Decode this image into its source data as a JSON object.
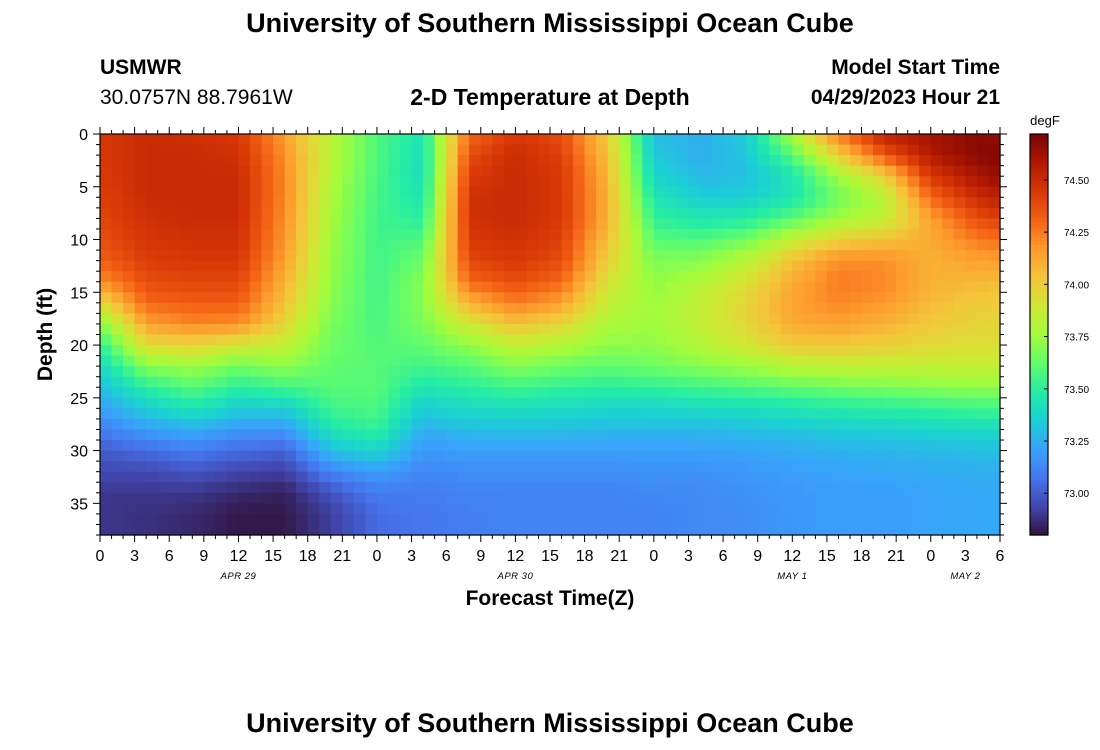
{
  "page": {
    "title_top": "University of Southern Mississippi Ocean Cube",
    "title_bottom": "University of Southern Mississippi Ocean Cube",
    "station": {
      "id": "USMWR",
      "coords": "30.0757N  88.7961W"
    },
    "model_start": {
      "label": "Model Start Time",
      "value": "04/29/2023 Hour 21"
    }
  },
  "chart_data": {
    "type": "heatmap",
    "title": "2-D Temperature at Depth",
    "xlabel": "Forecast Time(Z)",
    "ylabel": "Depth (ft)",
    "x_unit": "hours after 2023-04-29 00Z",
    "x_range_hours": [
      0,
      78
    ],
    "x_ticks": [
      {
        "h": 0,
        "label": "0"
      },
      {
        "h": 3,
        "label": "3"
      },
      {
        "h": 6,
        "label": "6"
      },
      {
        "h": 9,
        "label": "9"
      },
      {
        "h": 12,
        "label": "12"
      },
      {
        "h": 15,
        "label": "15"
      },
      {
        "h": 18,
        "label": "18"
      },
      {
        "h": 21,
        "label": "21"
      },
      {
        "h": 24,
        "label": "0"
      },
      {
        "h": 27,
        "label": "3"
      },
      {
        "h": 30,
        "label": "6"
      },
      {
        "h": 33,
        "label": "9"
      },
      {
        "h": 36,
        "label": "12"
      },
      {
        "h": 39,
        "label": "15"
      },
      {
        "h": 42,
        "label": "18"
      },
      {
        "h": 45,
        "label": "21"
      },
      {
        "h": 48,
        "label": "0"
      },
      {
        "h": 51,
        "label": "3"
      },
      {
        "h": 54,
        "label": "6"
      },
      {
        "h": 57,
        "label": "9"
      },
      {
        "h": 60,
        "label": "12"
      },
      {
        "h": 63,
        "label": "15"
      },
      {
        "h": 66,
        "label": "18"
      },
      {
        "h": 69,
        "label": "21"
      },
      {
        "h": 72,
        "label": "0"
      },
      {
        "h": 75,
        "label": "3"
      },
      {
        "h": 78,
        "label": "6"
      }
    ],
    "date_labels": [
      {
        "h": 12,
        "label": "APR 29"
      },
      {
        "h": 36,
        "label": "APR 30"
      },
      {
        "h": 60,
        "label": "MAY 1"
      },
      {
        "h": 75,
        "label": "MAY 2"
      }
    ],
    "y_range_ft": [
      0,
      38
    ],
    "y_ticks": [
      0,
      5,
      10,
      15,
      20,
      25,
      30,
      35
    ],
    "y_inverted": true,
    "colorbar": {
      "unit": "degF",
      "range": [
        72.8,
        74.72
      ],
      "ticks": [
        73.0,
        73.25,
        73.5,
        73.75,
        74.0,
        74.25,
        74.5
      ],
      "tick_labels": [
        "73.00",
        "73.25",
        "73.50",
        "73.75",
        "74.00",
        "74.25",
        "74.50"
      ],
      "colormap": [
        "#30123b",
        "#4145ab",
        "#4675ed",
        "#39a2fc",
        "#1bcfd4",
        "#24eca6",
        "#61fc6c",
        "#a4fc3b",
        "#d1e834",
        "#f3c63a",
        "#fe9b2d",
        "#f36315",
        "#d93806",
        "#b11901",
        "#7a0402"
      ]
    },
    "grid_step_hours": 1,
    "depth_levels_ft": [
      0,
      2,
      4,
      6,
      8,
      10,
      12,
      14,
      16,
      18,
      20,
      22,
      24,
      26,
      28,
      30,
      32,
      34,
      36,
      38
    ],
    "temperature_profiles_degF": {
      "hours": [
        0,
        4,
        8,
        12,
        16,
        20,
        24,
        28,
        32,
        36,
        40,
        44,
        48,
        52,
        56,
        60,
        64,
        68,
        72,
        76,
        78
      ],
      "values": [
        [
          74.45,
          74.45,
          74.44,
          74.42,
          74.4,
          74.37,
          74.32,
          74.2,
          73.95,
          73.7,
          73.5,
          73.4,
          73.3,
          73.2,
          73.1,
          73.0,
          72.95,
          72.9,
          72.9,
          72.9
        ],
        [
          74.5,
          74.5,
          74.5,
          74.5,
          74.48,
          74.46,
          74.43,
          74.38,
          74.3,
          74.15,
          73.95,
          73.7,
          73.5,
          73.35,
          73.2,
          73.05,
          72.95,
          72.9,
          72.88,
          72.88
        ],
        [
          74.48,
          74.5,
          74.5,
          74.5,
          74.5,
          74.48,
          74.45,
          74.4,
          74.33,
          74.22,
          73.98,
          73.75,
          73.6,
          73.45,
          73.25,
          73.1,
          72.98,
          72.9,
          72.86,
          72.86
        ],
        [
          74.45,
          74.48,
          74.5,
          74.5,
          74.5,
          74.48,
          74.45,
          74.4,
          74.33,
          74.2,
          73.9,
          73.65,
          73.5,
          73.35,
          73.18,
          73.05,
          72.94,
          72.86,
          72.82,
          72.82
        ],
        [
          74.15,
          74.2,
          74.22,
          74.22,
          74.2,
          74.18,
          74.15,
          74.1,
          74.05,
          73.97,
          73.85,
          73.72,
          73.55,
          73.35,
          73.18,
          73.02,
          72.92,
          72.84,
          72.82,
          72.82
        ],
        [
          73.82,
          73.82,
          73.8,
          73.78,
          73.77,
          73.75,
          73.74,
          73.72,
          73.7,
          73.67,
          73.65,
          73.62,
          73.6,
          73.55,
          73.45,
          73.3,
          73.12,
          72.98,
          72.92,
          72.92
        ],
        [
          73.58,
          73.58,
          73.57,
          73.56,
          73.55,
          73.55,
          73.55,
          73.55,
          73.56,
          73.57,
          73.59,
          73.6,
          73.6,
          73.58,
          73.52,
          73.38,
          73.2,
          73.1,
          73.05,
          73.05
        ],
        [
          73.45,
          73.42,
          73.42,
          73.45,
          73.5,
          73.58,
          73.65,
          73.7,
          73.7,
          73.68,
          73.62,
          73.55,
          73.45,
          73.35,
          73.25,
          73.18,
          73.13,
          73.1,
          73.08,
          73.08
        ],
        [
          74.3,
          74.38,
          74.44,
          74.48,
          74.48,
          74.45,
          74.4,
          74.3,
          74.1,
          73.9,
          73.72,
          73.6,
          73.5,
          73.4,
          73.3,
          73.2,
          73.15,
          73.12,
          73.1,
          73.1
        ],
        [
          74.45,
          74.5,
          74.5,
          74.5,
          74.5,
          74.48,
          74.45,
          74.38,
          74.25,
          74.05,
          73.85,
          73.7,
          73.55,
          73.42,
          73.3,
          73.2,
          73.15,
          73.12,
          73.12,
          73.12
        ],
        [
          74.38,
          74.42,
          74.45,
          74.45,
          74.45,
          74.42,
          74.38,
          74.3,
          74.15,
          73.98,
          73.8,
          73.65,
          73.52,
          73.4,
          73.3,
          73.2,
          73.15,
          73.12,
          73.12,
          73.12
        ],
        [
          74.0,
          74.05,
          74.08,
          74.1,
          74.1,
          74.05,
          74.0,
          73.92,
          73.85,
          73.78,
          73.72,
          73.62,
          73.5,
          73.38,
          73.28,
          73.2,
          73.15,
          73.12,
          73.12,
          73.12
        ],
        [
          73.3,
          73.33,
          73.38,
          73.45,
          73.52,
          73.6,
          73.68,
          73.72,
          73.75,
          73.75,
          73.72,
          73.65,
          73.52,
          73.38,
          73.28,
          73.2,
          73.16,
          73.14,
          73.12,
          73.12
        ],
        [
          73.25,
          73.25,
          73.28,
          73.35,
          73.45,
          73.58,
          73.7,
          73.8,
          73.85,
          73.85,
          73.8,
          73.7,
          73.55,
          73.4,
          73.28,
          73.2,
          73.16,
          73.14,
          73.14,
          73.14
        ],
        [
          73.35,
          73.32,
          73.3,
          73.35,
          73.48,
          73.65,
          73.82,
          73.92,
          73.98,
          73.97,
          73.9,
          73.75,
          73.58,
          73.42,
          73.3,
          73.22,
          73.18,
          73.16,
          73.15,
          73.15
        ],
        [
          73.78,
          73.6,
          73.45,
          73.45,
          73.6,
          73.85,
          74.05,
          74.12,
          74.15,
          74.12,
          74.02,
          73.82,
          73.62,
          73.45,
          73.32,
          73.24,
          73.2,
          73.18,
          73.18,
          73.18
        ],
        [
          74.25,
          74.0,
          73.75,
          73.65,
          73.75,
          74.0,
          74.2,
          74.25,
          74.22,
          74.15,
          74.02,
          73.85,
          73.65,
          73.48,
          73.35,
          73.26,
          73.22,
          73.2,
          73.2,
          73.2
        ],
        [
          74.55,
          74.35,
          74.0,
          73.82,
          73.85,
          74.05,
          74.2,
          74.22,
          74.18,
          74.1,
          74.0,
          73.85,
          73.67,
          73.5,
          73.36,
          73.27,
          73.23,
          73.2,
          73.2,
          73.2
        ],
        [
          74.62,
          74.58,
          74.45,
          74.3,
          74.15,
          74.12,
          74.1,
          74.1,
          74.07,
          74.02,
          73.96,
          73.85,
          73.7,
          73.52,
          73.38,
          73.28,
          73.24,
          73.22,
          73.22,
          73.22
        ],
        [
          74.68,
          74.68,
          74.6,
          74.5,
          74.38,
          74.25,
          74.15,
          74.08,
          74.02,
          73.98,
          73.94,
          73.86,
          73.72,
          73.55,
          73.4,
          73.3,
          73.25,
          73.23,
          73.23,
          73.23
        ],
        [
          74.65,
          74.7,
          74.65,
          74.55,
          74.42,
          74.28,
          74.15,
          74.07,
          74.01,
          73.97,
          73.93,
          73.86,
          73.72,
          73.56,
          73.4,
          73.3,
          73.25,
          73.23,
          73.23,
          73.23
        ]
      ]
    }
  }
}
